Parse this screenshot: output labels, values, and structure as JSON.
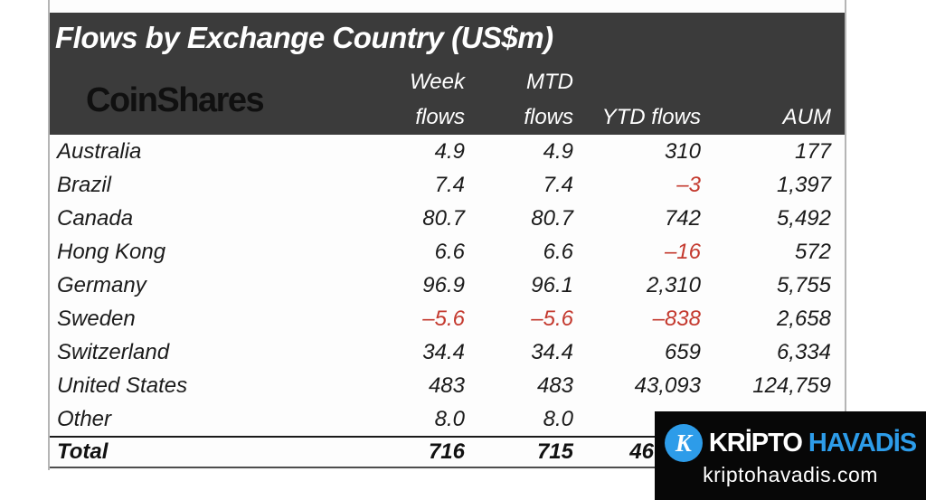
{
  "title": "Flows by Exchange Country (US$m)",
  "brand_logo": "CoinShares",
  "table": {
    "col_headers": {
      "week": [
        "Week",
        "flows"
      ],
      "mtd": [
        "MTD",
        "flows"
      ],
      "ytd": "YTD flows",
      "aum": "AUM"
    },
    "rows": [
      {
        "country": "Australia",
        "week": "4.9",
        "mtd": "4.9",
        "ytd": "310",
        "aum": "177",
        "neg": []
      },
      {
        "country": "Brazil",
        "week": "7.4",
        "mtd": "7.4",
        "ytd": "–3",
        "aum": "1,397",
        "neg": [
          "ytd"
        ]
      },
      {
        "country": "Canada",
        "week": "80.7",
        "mtd": "80.7",
        "ytd": "742",
        "aum": "5,492",
        "neg": []
      },
      {
        "country": "Hong Kong",
        "week": "6.6",
        "mtd": "6.6",
        "ytd": "–16",
        "aum": "572",
        "neg": [
          "ytd"
        ]
      },
      {
        "country": "Germany",
        "week": "96.9",
        "mtd": "96.1",
        "ytd": "2,310",
        "aum": "5,755",
        "neg": []
      },
      {
        "country": "Sweden",
        "week": "–5.6",
        "mtd": "–5.6",
        "ytd": "–838",
        "aum": "2,658",
        "neg": [
          "week",
          "mtd",
          "ytd"
        ]
      },
      {
        "country": "Switzerland",
        "week": "34.4",
        "mtd": "34.4",
        "ytd": "659",
        "aum": "6,334",
        "neg": []
      },
      {
        "country": "United States",
        "week": "483",
        "mtd": "483",
        "ytd": "43,093",
        "aum": "124,759",
        "neg": []
      },
      {
        "country": "Other",
        "week": "8.0",
        "mtd": "8.0",
        "ytd": "",
        "aum": "",
        "neg": []
      }
    ],
    "total": {
      "label": "Total",
      "week": "716",
      "mtd": "715",
      "ytd_visible": "46",
      "aum": ""
    }
  },
  "watermark": {
    "name_white": "KRİPTO",
    "name_blue": "HAVADİS",
    "domain": "kriptohavadis.com",
    "icon_letter": "K"
  },
  "colors": {
    "header_bg": "#3b3b3b",
    "negative_red": "#c43a2f",
    "watermark_accent_blue": "#2d9ce9",
    "watermark_bg": "#070707"
  },
  "chart_data": {
    "type": "table",
    "title": "Flows by Exchange Country (US$m)",
    "columns": [
      "Country",
      "Week flows",
      "MTD flows",
      "YTD flows",
      "AUM"
    ],
    "rows": [
      [
        "Australia",
        4.9,
        4.9,
        310,
        177
      ],
      [
        "Brazil",
        7.4,
        7.4,
        -3,
        1397
      ],
      [
        "Canada",
        80.7,
        80.7,
        742,
        5492
      ],
      [
        "Hong Kong",
        6.6,
        6.6,
        -16,
        572
      ],
      [
        "Germany",
        96.9,
        96.1,
        2310,
        5755
      ],
      [
        "Sweden",
        -5.6,
        -5.6,
        -838,
        2658
      ],
      [
        "Switzerland",
        34.4,
        34.4,
        659,
        6334
      ],
      [
        "United States",
        483,
        483,
        43093,
        124759
      ],
      [
        "Other",
        8.0,
        8.0,
        null,
        null
      ]
    ],
    "total_row": [
      "Total",
      716,
      715,
      null,
      null
    ],
    "notes": "Negative values shown in red; Other YTD/AUM, Total AUM and all but leading digits '46' of Total YTD are hidden behind the kriptohavadis.com watermark"
  }
}
